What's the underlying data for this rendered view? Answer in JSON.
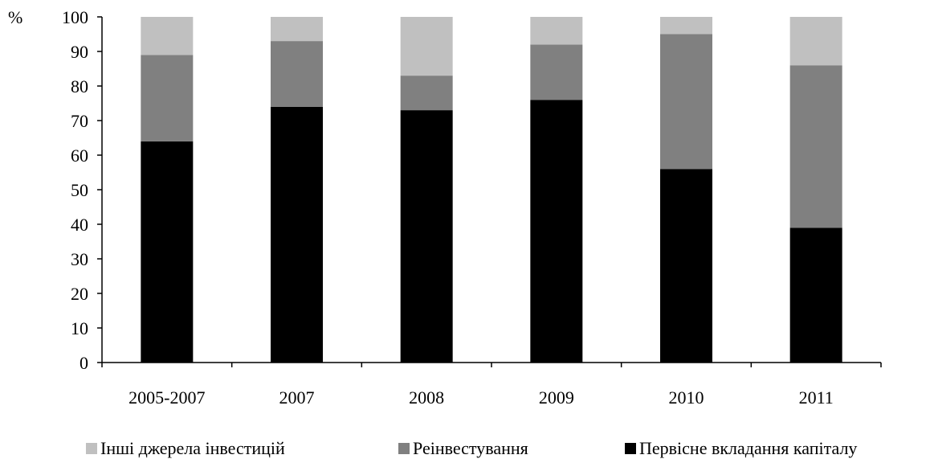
{
  "chart_data": {
    "type": "bar",
    "stacked": true,
    "ylabel": "%",
    "ylim": [
      0,
      100
    ],
    "yticks": [
      0,
      10,
      20,
      30,
      40,
      50,
      60,
      70,
      80,
      90,
      100
    ],
    "grid": false,
    "legend_position": "bottom",
    "categories": [
      "2005-2007",
      "2007",
      "2008",
      "2009",
      "2010",
      "2011"
    ],
    "series": [
      {
        "name": "Первісне вкладання капіталу",
        "color": "#000000",
        "values": [
          64,
          74,
          73,
          76,
          56,
          39
        ]
      },
      {
        "name": "Реінвестування",
        "color": "#808080",
        "values": [
          25,
          19,
          10,
          16,
          39,
          47
        ]
      },
      {
        "name": "Інші джерела інвестицій",
        "color": "#c0c0c0",
        "values": [
          11,
          7,
          17,
          8,
          5,
          14
        ]
      }
    ],
    "legend_order": [
      2,
      1,
      0
    ]
  }
}
